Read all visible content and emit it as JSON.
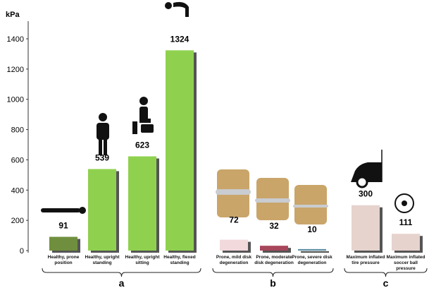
{
  "chart_data": {
    "type": "bar",
    "y_label": "kPa",
    "ylim": [
      0,
      1400
    ],
    "yticks": [
      0,
      200,
      400,
      600,
      800,
      1000,
      1200,
      1400
    ],
    "groups": [
      {
        "label": "a",
        "categories": [
          "Healthy, prone position",
          "Healthy, upright standing",
          "Healthy, upright sitting",
          "Healthy, flexed standing"
        ],
        "values": [
          91,
          539,
          623,
          1324
        ],
        "colors": [
          "#6f8f3e",
          "#8fd14f",
          "#8fd14f",
          "#8fd14f"
        ]
      },
      {
        "label": "b",
        "categories": [
          "Prone, mild disk degeneration",
          "Prone, moderate disk degeneration",
          "Prone, severe disk degeneration"
        ],
        "values": [
          72,
          32,
          10
        ],
        "colors": [
          "#f1d9dc",
          "#a8475c",
          "#5f8fa6"
        ]
      },
      {
        "label": "c",
        "categories": [
          "Maximum inflated tire pressure",
          "Maximum inflated soccer ball pressure"
        ],
        "values": [
          300,
          111
        ],
        "colors": [
          "#e6d3cd",
          "#e6d3cd"
        ]
      }
    ]
  }
}
